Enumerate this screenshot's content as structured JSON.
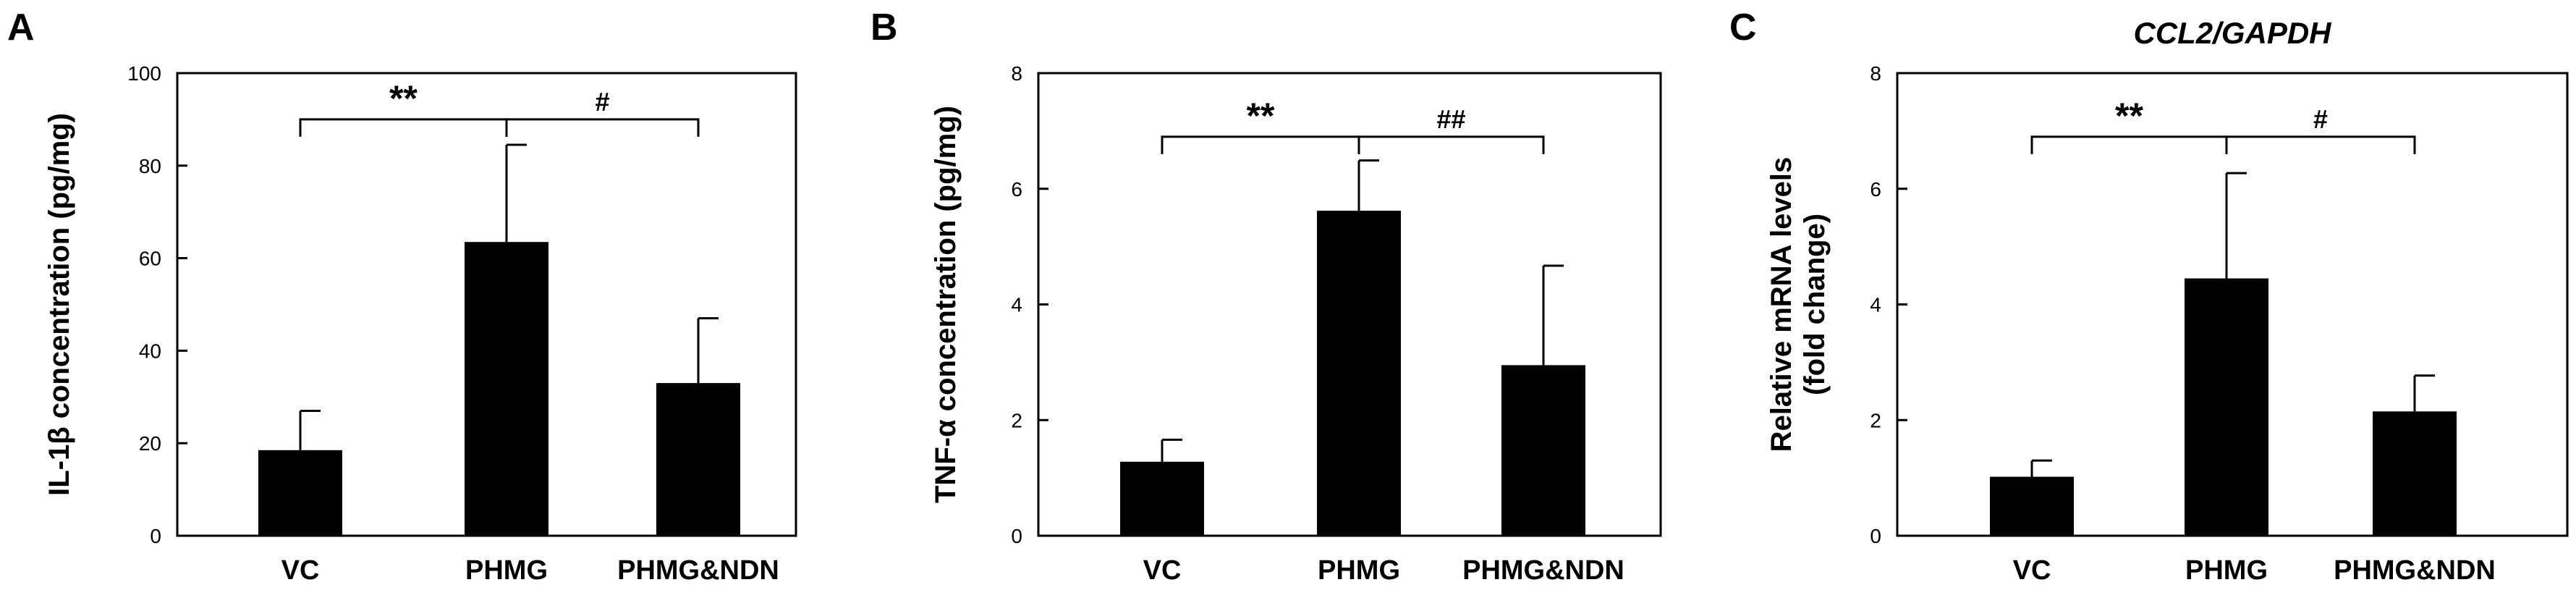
{
  "chart_data": [
    {
      "panel": "A",
      "type": "bar",
      "title": "",
      "xlabel": "",
      "ylabel": "IL-1β concentration (pg/mg)",
      "categories": [
        "VC",
        "PHMG",
        "PHMG&NDN"
      ],
      "values": [
        18.5,
        63.5,
        33
      ],
      "errors": [
        8.5,
        21,
        14
      ],
      "ylim": [
        0,
        100
      ],
      "yticks": [
        0,
        20,
        40,
        60,
        80,
        100
      ],
      "grid": false,
      "bar_color": "#000000",
      "significance": [
        {
          "from": 0,
          "to": 1,
          "label": "**",
          "y": 90
        },
        {
          "from": 1,
          "to": 2,
          "label": "#",
          "y": 90
        }
      ]
    },
    {
      "panel": "B",
      "type": "bar",
      "title": "",
      "xlabel": "",
      "ylabel": "TNF-α concentration (pg/mg)",
      "categories": [
        "VC",
        "PHMG",
        "PHMG&NDN"
      ],
      "values": [
        1.28,
        5.62,
        2.95
      ],
      "errors": [
        0.38,
        0.87,
        1.72
      ],
      "ylim": [
        0,
        8
      ],
      "yticks": [
        0,
        2,
        4,
        6,
        8
      ],
      "grid": false,
      "bar_color": "#000000",
      "significance": [
        {
          "from": 0,
          "to": 1,
          "label": "**",
          "y": 6.9
        },
        {
          "from": 1,
          "to": 2,
          "label": "##",
          "y": 6.9
        }
      ]
    },
    {
      "panel": "C",
      "type": "bar",
      "title": "CCL2/GAPDH",
      "xlabel": "",
      "ylabel": [
        "Relative mRNA levels",
        "(fold change)"
      ],
      "categories": [
        "VC",
        "PHMG",
        "PHMG&NDN"
      ],
      "values": [
        1.02,
        4.45,
        2.15
      ],
      "errors": [
        0.28,
        1.82,
        0.62
      ],
      "ylim": [
        0,
        8
      ],
      "yticks": [
        0,
        2,
        4,
        6,
        8
      ],
      "grid": false,
      "bar_color": "#000000",
      "significance": [
        {
          "from": 0,
          "to": 1,
          "label": "**",
          "y": 6.9
        },
        {
          "from": 1,
          "to": 2,
          "label": "#",
          "y": 6.9
        }
      ]
    }
  ]
}
